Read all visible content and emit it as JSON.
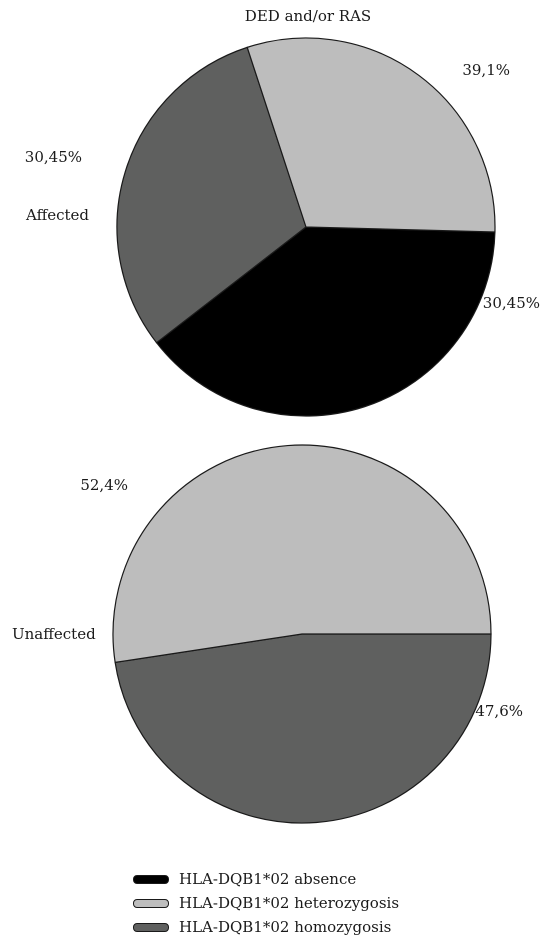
{
  "chart_data": [
    {
      "type": "pie",
      "title": "DED and/or RAS",
      "group_label": "Affected",
      "slices": [
        {
          "name": "HLA-DQB1*02 absence",
          "value": 39.1,
          "label": "39,1%",
          "color": "#000000"
        },
        {
          "name": "HLA-DQB1*02 homozygosis",
          "value": 30.45,
          "label": "30,45%",
          "color": "#5f605f"
        },
        {
          "name": "HLA-DQB1*02 heterozygosis",
          "value": 30.45,
          "label": "30,45%",
          "color": "#bdbdbd"
        }
      ]
    },
    {
      "type": "pie",
      "title": "",
      "group_label": "Unaffected",
      "slices": [
        {
          "name": "HLA-DQB1*02 homozygosis",
          "value": 47.6,
          "label": "47,6%",
          "color": "#5f605f"
        },
        {
          "name": "HLA-DQB1*02 heterozygosis",
          "value": 52.4,
          "label": "52,4%",
          "color": "#bdbdbd"
        }
      ]
    }
  ],
  "legend": [
    {
      "label": "HLA-DQB1*02 absence",
      "color": "#000000"
    },
    {
      "label": "HLA-DQB1*02 heterozygosis",
      "color": "#bdbdbd"
    },
    {
      "label": "HLA-DQB1*02 homozygosis",
      "color": "#5f605f"
    }
  ]
}
